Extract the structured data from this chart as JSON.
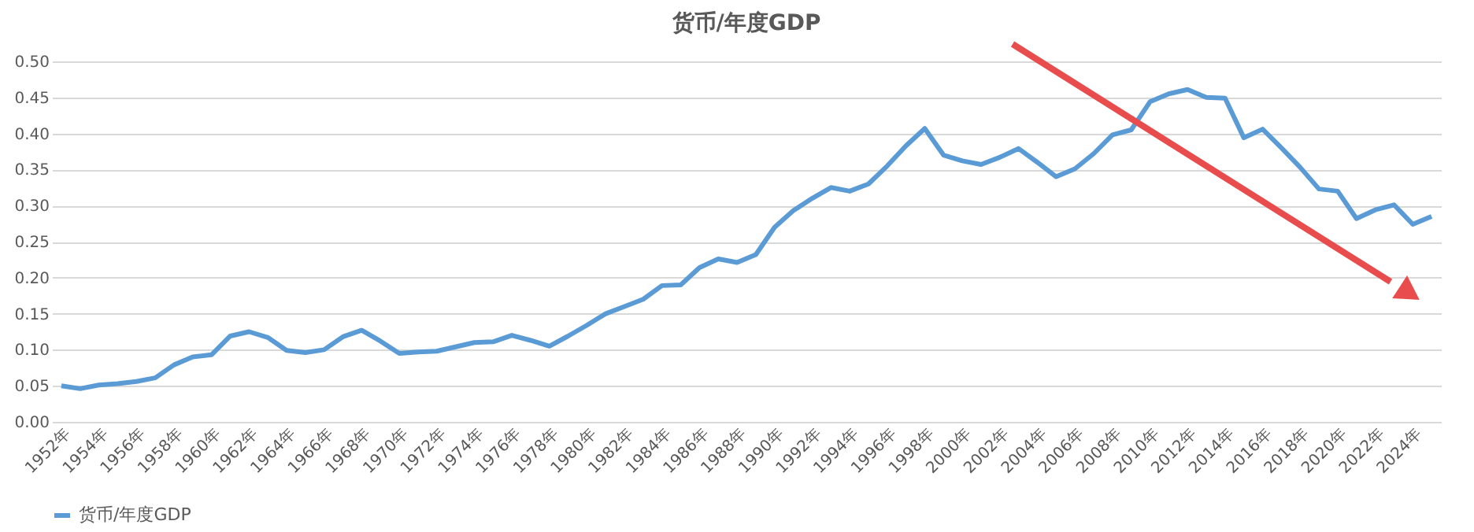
{
  "chart_data": {
    "type": "line",
    "title": "货币/年度GDP",
    "categories": [
      "1952年",
      null,
      "1954年",
      null,
      "1956年",
      null,
      "1958年",
      null,
      "1960年",
      null,
      "1962年",
      null,
      "1964年",
      null,
      "1966年",
      null,
      "1968年",
      null,
      "1970年",
      null,
      "1972年",
      null,
      "1974年",
      null,
      "1976年",
      null,
      "1978年",
      null,
      "1980年",
      null,
      "1982年",
      null,
      "1984年",
      null,
      "1986年",
      null,
      "1988年",
      null,
      "1990年",
      null,
      "1992年",
      null,
      "1994年",
      null,
      "1996年",
      null,
      "1998年",
      null,
      "2000年",
      null,
      "2002年",
      null,
      "2004年",
      null,
      "2006年",
      null,
      "2008年",
      null,
      "2010年",
      null,
      "2012年",
      null,
      "2014年",
      null,
      "2016年",
      null,
      "2018年",
      null,
      "2020年",
      null,
      "2022年",
      null,
      "2024年",
      null
    ],
    "series": [
      {
        "name": "货币/年度GDP",
        "color": "#5b9bd5",
        "values": [
          0.05,
          0.046,
          0.051,
          0.053,
          0.056,
          0.061,
          0.079,
          0.09,
          0.093,
          0.119,
          0.125,
          0.117,
          0.099,
          0.096,
          0.1,
          0.118,
          0.127,
          0.112,
          0.095,
          0.097,
          0.098,
          0.104,
          0.11,
          0.111,
          0.12,
          0.113,
          0.105,
          0.119,
          0.134,
          0.15,
          0.16,
          0.17,
          0.189,
          0.19,
          0.214,
          0.226,
          0.221,
          0.232,
          0.27,
          0.293,
          0.31,
          0.325,
          0.32,
          0.33,
          0.355,
          0.383,
          0.407,
          0.37,
          0.362,
          0.357,
          0.367,
          0.379,
          0.36,
          0.34,
          0.351,
          0.372,
          0.398,
          0.405,
          0.444,
          0.455,
          0.461,
          0.45,
          0.449,
          0.394,
          0.406,
          0.38,
          0.353,
          0.323,
          0.32,
          0.282,
          0.294,
          0.301,
          0.274,
          0.285
        ]
      }
    ],
    "ylim": [
      0,
      0.5
    ],
    "yticks": [
      {
        "value": 0,
        "label": "0.00"
      },
      0.05,
      {
        "value": 0.1,
        "label": "0.10"
      },
      0.15,
      {
        "value": 0.2,
        "label": "0.20"
      },
      0.25,
      {
        "value": 0.3,
        "label": "0.30"
      },
      0.35,
      {
        "value": 0.4,
        "label": "0.40"
      },
      0.45,
      {
        "value": 0.5,
        "label": "0.50"
      }
    ],
    "grid": "y",
    "legend": "bottom",
    "marker": "none",
    "line_style": "solid"
  }
}
